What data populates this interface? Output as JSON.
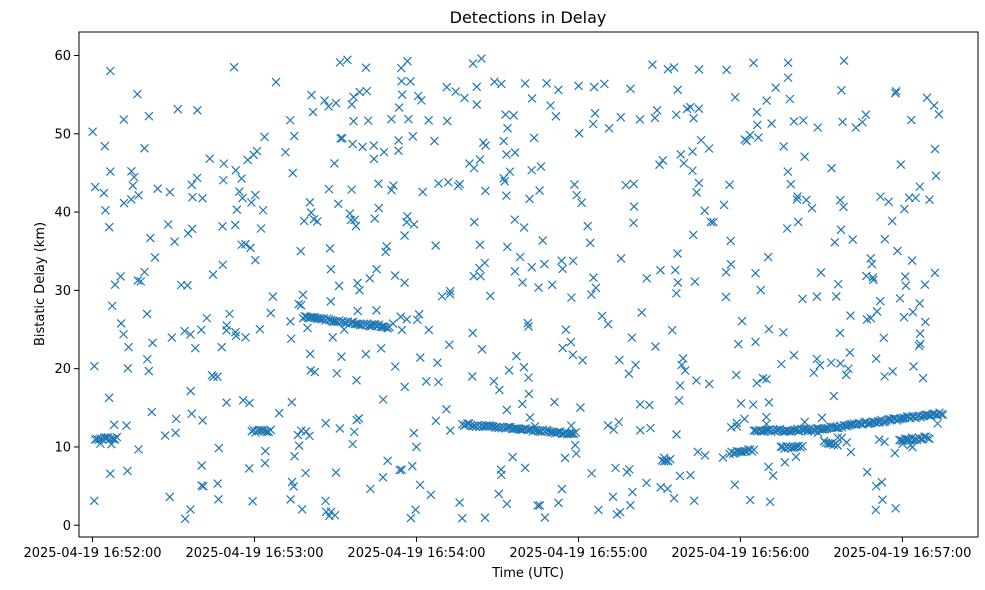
{
  "chart_data": {
    "type": "scatter",
    "title": "Detections in Delay",
    "xlabel": "Time (UTC)",
    "ylabel": "Bistatic Delay (km)",
    "x_tick_labels": [
      "2025-04-19 16:52:00",
      "2025-04-19 16:53:00",
      "2025-04-19 16:54:00",
      "2025-04-19 16:55:00",
      "2025-04-19 16:56:00",
      "2025-04-19 16:57:00"
    ],
    "y_ticks": [
      0,
      10,
      20,
      30,
      40,
      50,
      60
    ],
    "xlim": [
      "2025-04-19 16:51:55",
      "2025-04-19 16:57:28"
    ],
    "ylim": [
      -1.5,
      63
    ],
    "marker": "x",
    "color": "#1f77b4",
    "grid": false,
    "tracks": [
      {
        "start": "2025-04-19 16:52:01",
        "end": "2025-04-19 16:52:09",
        "delay_start": 11.0,
        "delay_end": 11.1
      },
      {
        "start": "2025-04-19 16:52:59",
        "end": "2025-04-19 16:53:06",
        "delay_start": 12.0,
        "delay_end": 12.0
      },
      {
        "start": "2025-04-19 16:53:18",
        "end": "2025-04-19 16:53:50",
        "delay_start": 26.6,
        "delay_end": 25.3
      },
      {
        "start": "2025-04-19 16:54:17",
        "end": "2025-04-19 16:54:59",
        "delay_start": 12.9,
        "delay_end": 11.7
      },
      {
        "start": "2025-04-19 16:55:31",
        "end": "2025-04-19 16:55:34",
        "delay_start": 8.2,
        "delay_end": 8.3
      },
      {
        "start": "2025-04-19 16:55:56",
        "end": "2025-04-19 16:56:05",
        "delay_start": 9.2,
        "delay_end": 9.6
      },
      {
        "start": "2025-04-19 16:56:05",
        "end": "2025-04-19 16:56:25",
        "delay_start": 12.0,
        "delay_end": 12.2
      },
      {
        "start": "2025-04-19 16:56:25",
        "end": "2025-04-19 16:57:15",
        "delay_start": 12.1,
        "delay_end": 14.3
      },
      {
        "start": "2025-04-19 16:56:15",
        "end": "2025-04-19 16:56:23",
        "delay_start": 9.9,
        "delay_end": 10.0
      },
      {
        "start": "2025-04-19 16:56:31",
        "end": "2025-04-19 16:56:36",
        "delay_start": 10.6,
        "delay_end": 10.3
      },
      {
        "start": "2025-04-19 16:56:59",
        "end": "2025-04-19 16:57:10",
        "delay_start": 10.9,
        "delay_end": 11.2
      }
    ],
    "scattered_detections": {
      "time_range": [
        "2025-04-19 16:52:00",
        "2025-04-19 16:57:15"
      ],
      "delay_range": [
        0.8,
        59.8
      ],
      "count": 650
    }
  }
}
